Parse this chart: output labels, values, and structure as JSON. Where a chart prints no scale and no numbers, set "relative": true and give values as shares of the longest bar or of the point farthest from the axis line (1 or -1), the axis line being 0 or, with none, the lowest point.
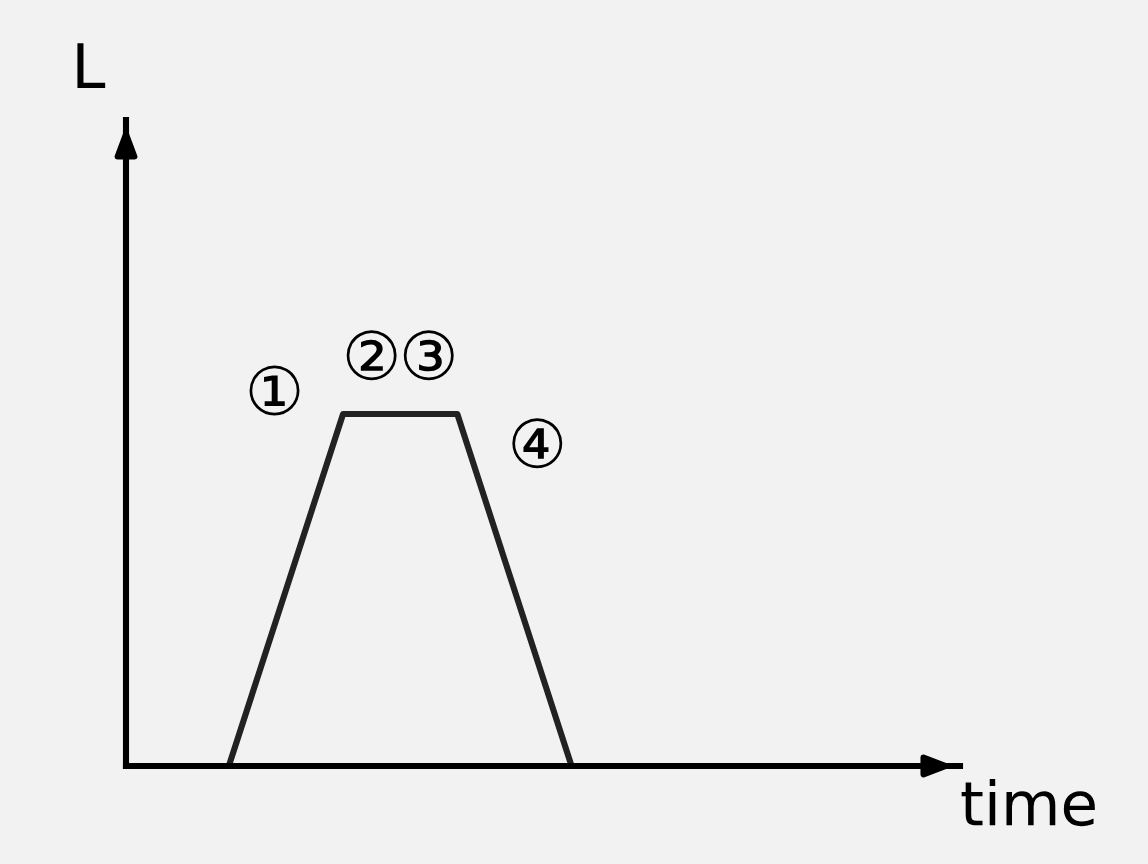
{
  "chart_data": {
    "type": "line",
    "relative": true,
    "categories": [
      null,
      null,
      null,
      null
    ],
    "series": [
      {
        "color": "#222222",
        "values": [
          0,
          1,
          1,
          0
        ]
      }
    ],
    "annotations": [
      "①",
      "②",
      "③",
      "④",
      "L",
      "time"
    ],
    "marker": "none",
    "line_style": "solid",
    "grid": false,
    "legend": false
  }
}
